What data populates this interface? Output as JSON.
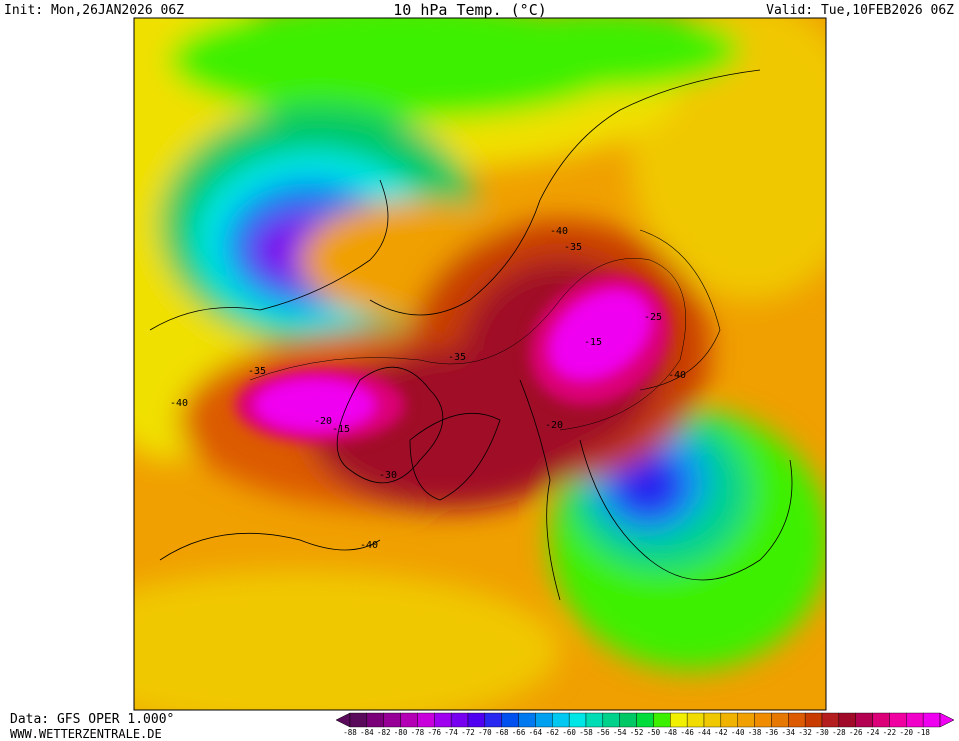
{
  "header": {
    "init": "Init: Mon,26JAN2026 06Z",
    "title": "10 hPa Temp. (°C)",
    "valid": "Valid: Tue,10FEB2026 06Z"
  },
  "footer": {
    "data": "Data: GFS OPER 1.000°",
    "website": "WWW.WETTERZENTRALE.DE"
  },
  "map": {
    "contour_labels": [
      "-35",
      "-40",
      "-15",
      "-20",
      "-35",
      "-40",
      "-35",
      "-25",
      "-15",
      "-20",
      "-40",
      "-40",
      "-30"
    ]
  },
  "legend": {
    "items": [
      {
        "label": "-88",
        "color": "#5a0a5a"
      },
      {
        "label": "-84",
        "color": "#7a007a"
      },
      {
        "label": "-82",
        "color": "#960096"
      },
      {
        "label": "-80",
        "color": "#b400b4"
      },
      {
        "label": "-78",
        "color": "#c800dc"
      },
      {
        "label": "-76",
        "color": "#a000f0"
      },
      {
        "label": "-74",
        "color": "#7800f0"
      },
      {
        "label": "-72",
        "color": "#5000f0"
      },
      {
        "label": "-70",
        "color": "#2828f0"
      },
      {
        "label": "-68",
        "color": "#0050f0"
      },
      {
        "label": "-66",
        "color": "#0078f0"
      },
      {
        "label": "-64",
        "color": "#00a0f0"
      },
      {
        "label": "-62",
        "color": "#00c8f0"
      },
      {
        "label": "-60",
        "color": "#00e6e6"
      },
      {
        "label": "-58",
        "color": "#00dcb4"
      },
      {
        "label": "-56",
        "color": "#00d28c"
      },
      {
        "label": "-54",
        "color": "#00c864"
      },
      {
        "label": "-52",
        "color": "#00dc3c"
      },
      {
        "label": "-50",
        "color": "#3cf000"
      },
      {
        "label": "-48",
        "color": "#f0f000"
      },
      {
        "label": "-46",
        "color": "#f0dc00"
      },
      {
        "label": "-44",
        "color": "#f0c800"
      },
      {
        "label": "-42",
        "color": "#f0b400"
      },
      {
        "label": "-40",
        "color": "#f0a000"
      },
      {
        "label": "-38",
        "color": "#f08c00"
      },
      {
        "label": "-36",
        "color": "#e67800"
      },
      {
        "label": "-34",
        "color": "#dc5a00"
      },
      {
        "label": "-32",
        "color": "#c83c00"
      },
      {
        "label": "-30",
        "color": "#b41e1e"
      },
      {
        "label": "-28",
        "color": "#a00a28"
      },
      {
        "label": "-26",
        "color": "#b40050"
      },
      {
        "label": "-24",
        "color": "#dc0078"
      },
      {
        "label": "-22",
        "color": "#f000a0"
      },
      {
        "label": "-20",
        "color": "#f000c8"
      },
      {
        "label": "-18",
        "color": "#f000f0"
      }
    ]
  }
}
